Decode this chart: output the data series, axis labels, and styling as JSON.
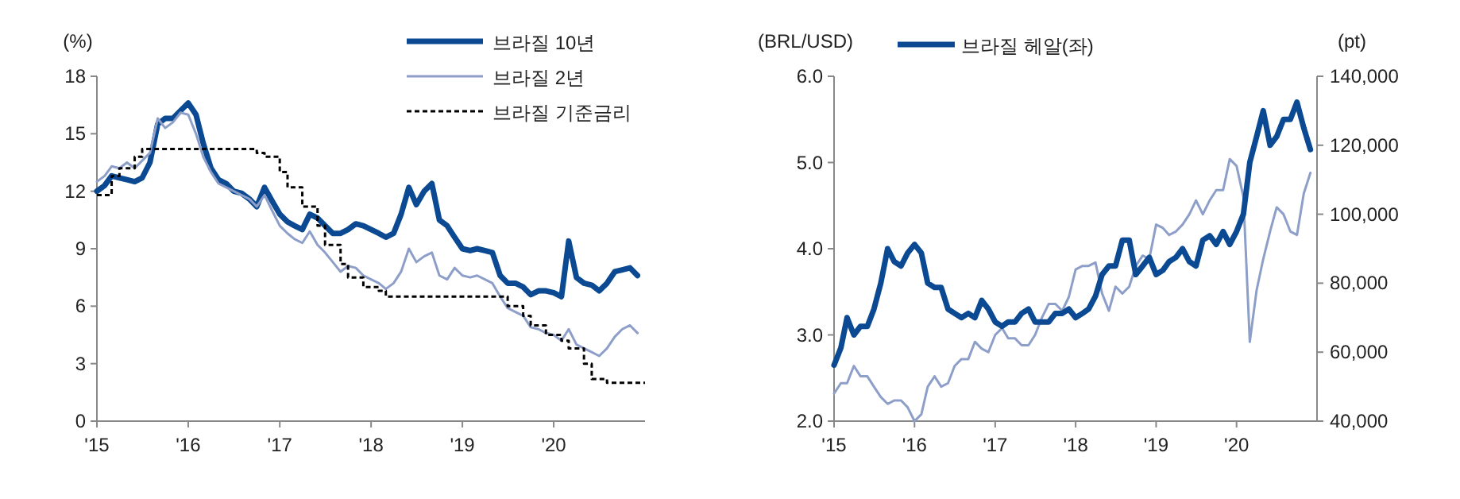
{
  "chart_data": [
    {
      "type": "line",
      "ylabel": "(%)",
      "legend": "top right",
      "grid": false,
      "xlim": [
        "2015-01-01",
        "2020-12-31"
      ],
      "xticks": [
        {
          "value": "2015-01-01",
          "label": "'15"
        },
        {
          "value": "2016-01-01",
          "label": "'16"
        },
        {
          "value": "2017-01-01",
          "label": "'17"
        },
        {
          "value": "2018-01-01",
          "label": "'18"
        },
        {
          "value": "2019-01-01",
          "label": "'19"
        },
        {
          "value": "2020-01-01",
          "label": "'20"
        }
      ],
      "ylim": [
        0,
        18
      ],
      "yticks": [
        0,
        3,
        6,
        9,
        12,
        15,
        18
      ],
      "x": [
        "2015-01",
        "2015-02",
        "2015-03",
        "2015-04",
        "2015-05",
        "2015-06",
        "2015-07",
        "2015-08",
        "2015-09",
        "2015-10",
        "2015-11",
        "2015-12",
        "2016-01",
        "2016-02",
        "2016-03",
        "2016-04",
        "2016-05",
        "2016-06",
        "2016-07",
        "2016-08",
        "2016-09",
        "2016-10",
        "2016-11",
        "2016-12",
        "2017-01",
        "2017-02",
        "2017-03",
        "2017-04",
        "2017-05",
        "2017-06",
        "2017-07",
        "2017-08",
        "2017-09",
        "2017-10",
        "2017-11",
        "2017-12",
        "2018-01",
        "2018-02",
        "2018-03",
        "2018-04",
        "2018-05",
        "2018-06",
        "2018-07",
        "2018-08",
        "2018-09",
        "2018-10",
        "2018-11",
        "2018-12",
        "2019-01",
        "2019-02",
        "2019-03",
        "2019-04",
        "2019-05",
        "2019-06",
        "2019-07",
        "2019-08",
        "2019-09",
        "2019-10",
        "2019-11",
        "2019-12",
        "2020-01",
        "2020-02",
        "2020-03",
        "2020-04",
        "2020-05",
        "2020-06",
        "2020-07",
        "2020-08",
        "2020-09",
        "2020-10",
        "2020-11",
        "2020-12"
      ],
      "series": [
        {
          "name": "브라질 10년",
          "color": "#0b4a92",
          "line_style": "solid",
          "values": [
            12.0,
            12.3,
            12.8,
            12.7,
            12.6,
            12.5,
            12.7,
            13.5,
            15.5,
            15.8,
            15.8,
            16.2,
            16.6,
            16.0,
            14.5,
            13.2,
            12.6,
            12.4,
            12.0,
            11.9,
            11.6,
            11.2,
            12.2,
            11.5,
            10.8,
            10.4,
            10.2,
            10.0,
            10.8,
            10.6,
            10.2,
            9.8,
            9.8,
            10.0,
            10.3,
            10.2,
            10.0,
            9.8,
            9.6,
            9.8,
            10.8,
            12.2,
            11.3,
            12.0,
            12.4,
            10.5,
            10.2,
            9.6,
            9.0,
            8.9,
            9.0,
            8.9,
            8.8,
            7.6,
            7.2,
            7.2,
            7.0,
            6.6,
            6.8,
            6.8,
            6.7,
            6.5,
            9.4,
            7.5,
            7.2,
            7.1,
            6.8,
            7.2,
            7.8,
            7.9,
            8.0,
            7.6
          ]
        },
        {
          "name": "브라질 2년",
          "color": "#8d9fc9",
          "line_style": "solid",
          "values": [
            12.5,
            12.8,
            13.3,
            13.2,
            13.5,
            13.2,
            13.6,
            14.0,
            15.8,
            15.3,
            15.6,
            16.1,
            16.0,
            15.0,
            13.8,
            13.0,
            12.4,
            12.2,
            12.0,
            11.8,
            11.6,
            11.2,
            11.8,
            11.0,
            10.2,
            9.8,
            9.5,
            9.3,
            9.9,
            9.2,
            8.8,
            8.3,
            7.8,
            8.1,
            8.0,
            7.6,
            7.4,
            7.2,
            6.9,
            7.2,
            7.8,
            9.0,
            8.3,
            8.6,
            8.8,
            7.6,
            7.4,
            8.0,
            7.6,
            7.5,
            7.6,
            7.4,
            7.2,
            6.5,
            5.9,
            5.7,
            5.5,
            4.9,
            4.8,
            4.6,
            4.5,
            4.2,
            4.8,
            4.0,
            3.8,
            3.6,
            3.4,
            3.8,
            4.4,
            4.8,
            5.0,
            4.6
          ]
        },
        {
          "name": "브라질 기준금리",
          "type": "step",
          "color": "#000000",
          "line_style": "dashed",
          "x": [
            "2015-01",
            "2015-03",
            "2015-04",
            "2015-06",
            "2015-07",
            "2016-10",
            "2016-11",
            "2017-01",
            "2017-02",
            "2017-04",
            "2017-06",
            "2017-07",
            "2017-09",
            "2017-10",
            "2017-12",
            "2018-02",
            "2018-03",
            "2019-07",
            "2019-09",
            "2019-10",
            "2019-12",
            "2020-02",
            "2020-03",
            "2020-05",
            "2020-06",
            "2020-08",
            "2020-12-31"
          ],
          "values": [
            11.8,
            12.8,
            13.2,
            13.8,
            14.2,
            14.0,
            13.8,
            13.0,
            12.2,
            11.2,
            10.2,
            9.2,
            8.2,
            7.5,
            7.0,
            6.8,
            6.5,
            6.0,
            5.5,
            5.0,
            4.5,
            4.2,
            3.8,
            3.0,
            2.2,
            2.0,
            2.0
          ]
        }
      ]
    },
    {
      "type": "line",
      "ylabel": "(BRL/USD)",
      "y2label": "(pt)",
      "legend": "top",
      "grid": false,
      "xlim": [
        "2015-01-01",
        "2020-12-31"
      ],
      "xticks": [
        {
          "value": "2015-01-01",
          "label": "'15"
        },
        {
          "value": "2016-01-01",
          "label": "'16"
        },
        {
          "value": "2017-01-01",
          "label": "'17"
        },
        {
          "value": "2018-01-01",
          "label": "'18"
        },
        {
          "value": "2019-01-01",
          "label": "'19"
        },
        {
          "value": "2020-01-01",
          "label": "'20"
        }
      ],
      "ylim": [
        2,
        6
      ],
      "yticks": [
        {
          "value": 2,
          "label": "2.0"
        },
        {
          "value": 3,
          "label": "3.0"
        },
        {
          "value": 4,
          "label": "4.0"
        },
        {
          "value": 5,
          "label": "5.0"
        },
        {
          "value": 6,
          "label": "6.0"
        }
      ],
      "y2lim": [
        40000,
        140000
      ],
      "y2ticks": [
        {
          "value": 40000,
          "label": "40,000"
        },
        {
          "value": 60000,
          "label": "60,000"
        },
        {
          "value": 80000,
          "label": "80,000"
        },
        {
          "value": 100000,
          "label": "100,000"
        },
        {
          "value": 120000,
          "label": "120,000"
        },
        {
          "value": 140000,
          "label": "140,000"
        }
      ],
      "x": [
        "2015-01",
        "2015-02",
        "2015-03",
        "2015-04",
        "2015-05",
        "2015-06",
        "2015-07",
        "2015-08",
        "2015-09",
        "2015-10",
        "2015-11",
        "2015-12",
        "2016-01",
        "2016-02",
        "2016-03",
        "2016-04",
        "2016-05",
        "2016-06",
        "2016-07",
        "2016-08",
        "2016-09",
        "2016-10",
        "2016-11",
        "2016-12",
        "2017-01",
        "2017-02",
        "2017-03",
        "2017-04",
        "2017-05",
        "2017-06",
        "2017-07",
        "2017-08",
        "2017-09",
        "2017-10",
        "2017-11",
        "2017-12",
        "2018-01",
        "2018-02",
        "2018-03",
        "2018-04",
        "2018-05",
        "2018-06",
        "2018-07",
        "2018-08",
        "2018-09",
        "2018-10",
        "2018-11",
        "2018-12",
        "2019-01",
        "2019-02",
        "2019-03",
        "2019-04",
        "2019-05",
        "2019-06",
        "2019-07",
        "2019-08",
        "2019-09",
        "2019-10",
        "2019-11",
        "2019-12",
        "2020-01",
        "2020-02",
        "2020-03",
        "2020-04",
        "2020-05",
        "2020-06",
        "2020-07",
        "2020-08",
        "2020-09",
        "2020-10",
        "2020-11",
        "2020-12"
      ],
      "series": [
        {
          "color": "#8d9fc9",
          "axis": "y2",
          "line_style": "solid",
          "values": [
            48000,
            51000,
            51000,
            56000,
            53000,
            53000,
            50000,
            47000,
            45000,
            46000,
            46000,
            44000,
            40000,
            42000,
            50000,
            53000,
            50000,
            51000,
            56000,
            58000,
            58000,
            63000,
            61000,
            60000,
            65000,
            67000,
            64000,
            64000,
            62000,
            62000,
            65000,
            70000,
            74000,
            74000,
            72000,
            76000,
            84000,
            85000,
            85000,
            86000,
            77000,
            72000,
            79000,
            77000,
            79000,
            85000,
            88000,
            87000,
            97000,
            96000,
            94000,
            95000,
            97000,
            100000,
            104000,
            100000,
            104000,
            107000,
            107000,
            116000,
            114000,
            105000,
            63000,
            78000,
            87000,
            95000,
            102000,
            100000,
            95000,
            94000,
            106000,
            112000
          ]
        },
        {
          "name": "브라질 헤알(좌)",
          "color": "#0b4a92",
          "line_style": "solid",
          "values": [
            2.65,
            2.85,
            3.2,
            3.0,
            3.1,
            3.1,
            3.3,
            3.6,
            4.0,
            3.85,
            3.8,
            3.95,
            4.05,
            3.95,
            3.6,
            3.55,
            3.55,
            3.3,
            3.25,
            3.2,
            3.25,
            3.2,
            3.4,
            3.3,
            3.15,
            3.1,
            3.15,
            3.15,
            3.25,
            3.3,
            3.15,
            3.15,
            3.15,
            3.25,
            3.25,
            3.3,
            3.2,
            3.25,
            3.3,
            3.45,
            3.7,
            3.8,
            3.8,
            4.1,
            4.1,
            3.7,
            3.8,
            3.9,
            3.7,
            3.75,
            3.85,
            3.9,
            4.0,
            3.85,
            3.8,
            4.1,
            4.15,
            4.05,
            4.2,
            4.05,
            4.2,
            4.4,
            5.0,
            5.3,
            5.6,
            5.2,
            5.3,
            5.5,
            5.5,
            5.7,
            5.4,
            5.15
          ]
        }
      ]
    }
  ]
}
